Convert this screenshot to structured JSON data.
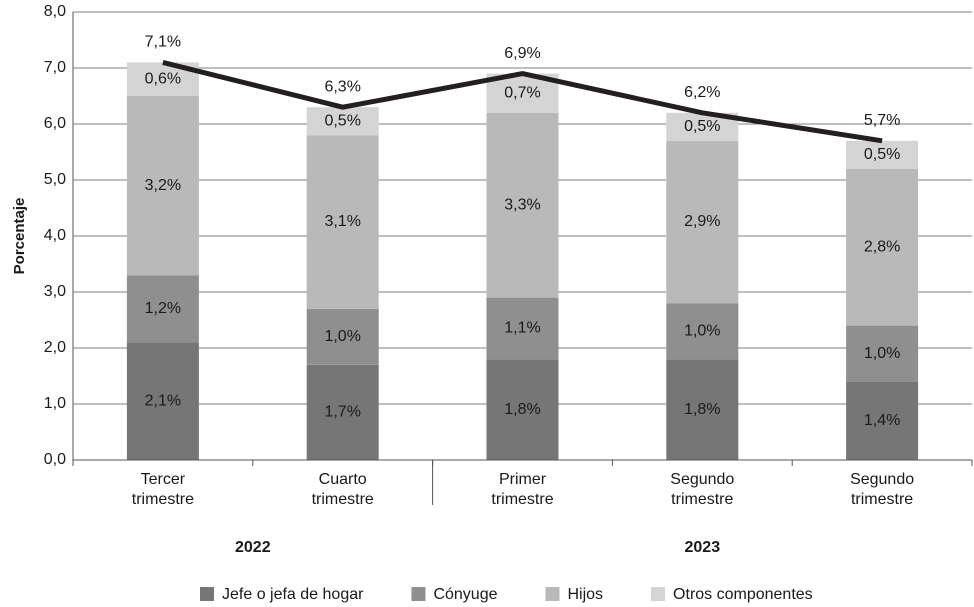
{
  "chart_data": {
    "type": "stacked_bar_line",
    "y_label": "Porcentaje",
    "categories": [
      "Tercer trimestre",
      "Cuarto trimestre",
      "Primer trimestre",
      "Segundo trimestre",
      "Segundo trimestre"
    ],
    "group_labels": [
      "2022",
      "2023"
    ],
    "group_sizes": [
      2,
      3
    ],
    "ylim": [
      0,
      8
    ],
    "yticks": [
      {
        "value": 0,
        "label": "0,0"
      },
      {
        "value": 1,
        "label": "1,0"
      },
      {
        "value": 2,
        "label": "2,0"
      },
      {
        "value": 3,
        "label": "3,0"
      },
      {
        "value": 4,
        "label": "4,0"
      },
      {
        "value": 5,
        "label": "5,0"
      },
      {
        "value": 6,
        "label": "6,0"
      },
      {
        "value": 7,
        "label": "7,0"
      },
      {
        "value": 8,
        "label": "8,0"
      }
    ],
    "grid": true,
    "legend": "bottom",
    "series": [
      {
        "name": "Jefe o jefa de hogar",
        "color": "#767676",
        "values": [
          2.1,
          1.7,
          1.8,
          1.8,
          1.4
        ],
        "value_labels": [
          "2,1%",
          "1,7%",
          "1,8%",
          "1,8%",
          "1,4%"
        ]
      },
      {
        "name": "Cónyuge",
        "color": "#8f8f8f",
        "values": [
          1.2,
          1.0,
          1.1,
          1.0,
          1.0
        ],
        "value_labels": [
          "1,2%",
          "1,0%",
          "1,1%",
          "1,0%",
          "1,0%"
        ]
      },
      {
        "name": "Hijos",
        "color": "#b9b9b9",
        "values": [
          3.2,
          3.1,
          3.3,
          2.9,
          2.8
        ],
        "value_labels": [
          "3,2%",
          "3,1%",
          "3,3%",
          "2,9%",
          "2,8%"
        ]
      },
      {
        "name": "Otros componentes",
        "color": "#d4d4d4",
        "values": [
          0.6,
          0.5,
          0.7,
          0.5,
          0.5
        ],
        "value_labels": [
          "0,6%",
          "0,5%",
          "0,7%",
          "0,5%",
          "0,5%"
        ]
      }
    ],
    "totals": {
      "color": "#231f20",
      "values": [
        7.1,
        6.3,
        6.9,
        6.2,
        5.7
      ],
      "value_labels": [
        "7,1%",
        "6,3%",
        "6,9%",
        "6,2%",
        "5,7%"
      ]
    }
  }
}
